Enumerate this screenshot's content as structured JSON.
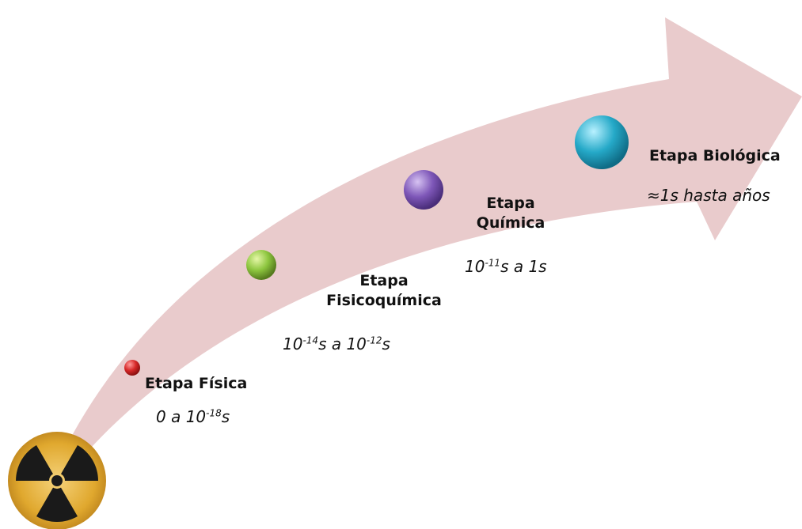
{
  "stages": [
    {
      "title_line1": "Etapa Física",
      "time": {
        "pre": "0 a 10",
        "sup1": "-18",
        "mid": "s",
        "sup2": "",
        "post": ""
      },
      "color": "#d62828"
    },
    {
      "title_line1": "Etapa",
      "title_line2": "Fisicoquímica",
      "time": {
        "pre": "10",
        "sup1": "-14",
        "mid": "s a 10",
        "sup2": "-12",
        "post": "s"
      },
      "color": "#8dc63f"
    },
    {
      "title_line1": "Etapa",
      "title_line2": "Química",
      "time": {
        "pre": "10",
        "sup1": "-11",
        "mid": "s a 1s",
        "sup2": "",
        "post": ""
      },
      "color": "#7e57b8"
    },
    {
      "title_line1": "Etapa Biológica",
      "time": {
        "pre": "≈1s hasta años",
        "sup1": "",
        "mid": "",
        "sup2": "",
        "post": ""
      },
      "color": "#25a9c8"
    }
  ],
  "colors": {
    "arrow": "#e8c8c9",
    "radiation_bg": "#e0a82e",
    "radiation_fg": "#1a1a1a"
  },
  "icons": {
    "source": "radiation-trefoil-icon",
    "arrow": "curved-arrow"
  }
}
